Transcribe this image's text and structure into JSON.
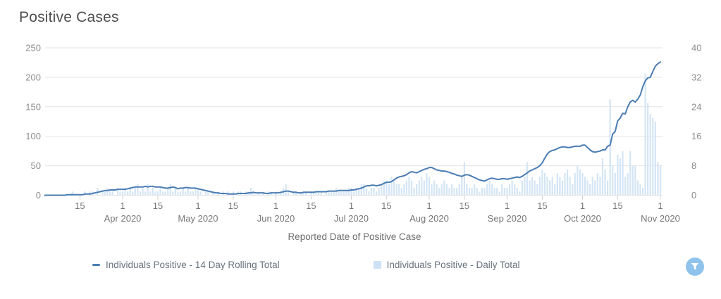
{
  "title": "Positive Cases",
  "chart_data": {
    "type": "composite",
    "title": "Positive Cases",
    "xlabel": "Reported Date of Positive Case",
    "grid": true,
    "legend_position": "bottom",
    "x_axis": {
      "start_date": "2020-03-01",
      "end_date": "2020-11-01",
      "ticks": [
        {
          "day": 14,
          "label": "15"
        },
        {
          "day": 31,
          "label": "1",
          "month": "Apr 2020"
        },
        {
          "day": 45,
          "label": "15"
        },
        {
          "day": 61,
          "label": "1",
          "month": "May 2020"
        },
        {
          "day": 75,
          "label": "15"
        },
        {
          "day": 92,
          "label": "1",
          "month": "Jun 2020"
        },
        {
          "day": 106,
          "label": "15"
        },
        {
          "day": 122,
          "label": "1",
          "month": "Jul 2020"
        },
        {
          "day": 136,
          "label": "15"
        },
        {
          "day": 153,
          "label": "1",
          "month": "Aug 2020"
        },
        {
          "day": 167,
          "label": "15"
        },
        {
          "day": 184,
          "label": "1",
          "month": "Sep 2020"
        },
        {
          "day": 198,
          "label": "15"
        },
        {
          "day": 214,
          "label": "1",
          "month": "Oct 2020"
        },
        {
          "day": 228,
          "label": "15"
        },
        {
          "day": 245,
          "label": "1",
          "month": "Nov 2020"
        }
      ]
    },
    "y_left": {
      "max": 250,
      "ticks": [
        0,
        50,
        100,
        150,
        200,
        250
      ]
    },
    "y_right": {
      "max": 40,
      "ticks": [
        0,
        8,
        16,
        24,
        32,
        40
      ]
    },
    "series": [
      {
        "name": "Individuals Positive - 14 Day Rolling Total",
        "type": "line",
        "axis": "left",
        "color": "#4a7cb3",
        "values": [
          0,
          0,
          0,
          0,
          0,
          0,
          0,
          0,
          0,
          1,
          1,
          1,
          1,
          1,
          1,
          1,
          2,
          2,
          2,
          3,
          4,
          5,
          6,
          7,
          8,
          8,
          9,
          9,
          9,
          10,
          10,
          10,
          10,
          11,
          12,
          13,
          14,
          14,
          14,
          14,
          15,
          14,
          15,
          15,
          14,
          14,
          14,
          13,
          12,
          12,
          13,
          14,
          13,
          11,
          12,
          12,
          13,
          13,
          12,
          12,
          12,
          11,
          10,
          9,
          8,
          7,
          6,
          5,
          4,
          4,
          3,
          3,
          3,
          2,
          2,
          2,
          2,
          3,
          3,
          3,
          3,
          4,
          4,
          5,
          4,
          4,
          4,
          4,
          3,
          3,
          4,
          4,
          4,
          4,
          5,
          6,
          7,
          7,
          6,
          5,
          5,
          4,
          4,
          5,
          5,
          5,
          5,
          5,
          6,
          6,
          6,
          6,
          6,
          7,
          7,
          7,
          7,
          8,
          8,
          8,
          8,
          8,
          9,
          9,
          10,
          11,
          12,
          14,
          16,
          16,
          17,
          17,
          16,
          17,
          18,
          20,
          22,
          22,
          23,
          26,
          29,
          31,
          32,
          33,
          35,
          38,
          40,
          39,
          38,
          40,
          42,
          44,
          45,
          47,
          47,
          45,
          43,
          42,
          41,
          41,
          40,
          39,
          37,
          36,
          34,
          33,
          32,
          34,
          35,
          34,
          32,
          30,
          28,
          26,
          25,
          24,
          26,
          28,
          29,
          28,
          27,
          27,
          28,
          28,
          27,
          28,
          29,
          30,
          31,
          30,
          32,
          35,
          38,
          41,
          43,
          45,
          47,
          50,
          55,
          63,
          70,
          74,
          76,
          77,
          79,
          81,
          82,
          82,
          81,
          81,
          82,
          83,
          83,
          83,
          85,
          85,
          81,
          77,
          74,
          73,
          74,
          75,
          77,
          77,
          83,
          85,
          104,
          108,
          126,
          131,
          139,
          138,
          150,
          158,
          161,
          158,
          163,
          170,
          184,
          194,
          199,
          200,
          210,
          219,
          223,
          226
        ]
      },
      {
        "name": "Individuals Positive - Daily Total",
        "type": "bar",
        "axis": "right",
        "color": "#d4e5f5",
        "values": [
          0,
          0,
          0,
          0,
          0,
          0,
          0,
          0,
          0,
          0,
          0,
          1,
          0,
          0,
          0,
          0,
          1,
          0,
          1,
          1,
          0,
          2,
          0,
          1,
          1,
          2,
          1,
          1,
          0,
          2,
          1,
          1,
          2,
          1,
          2,
          1,
          2,
          3,
          1,
          2,
          1,
          3,
          1,
          2,
          1,
          1,
          2,
          1,
          1,
          2,
          3,
          1,
          2,
          1,
          1,
          2,
          1,
          2,
          1,
          1,
          2,
          2,
          1,
          0,
          1,
          1,
          0,
          1,
          0,
          1,
          0,
          1,
          0,
          1,
          0,
          1,
          0,
          1,
          1,
          0,
          1,
          1,
          2,
          1,
          0,
          1,
          0,
          1,
          0,
          1,
          1,
          0,
          1,
          0,
          1,
          2,
          3,
          1,
          0,
          1,
          1,
          0,
          1,
          1,
          1,
          0,
          1,
          1,
          1,
          1,
          1,
          0,
          1,
          1,
          1,
          1,
          2,
          1,
          1,
          1,
          1,
          2,
          2,
          1,
          2,
          2,
          3,
          3,
          2,
          1,
          2,
          2,
          1,
          2,
          3,
          4,
          4,
          3,
          5,
          4,
          3,
          3,
          2,
          3,
          4,
          5,
          4,
          2,
          3,
          4,
          5,
          4,
          6,
          5,
          3,
          4,
          3,
          2,
          3,
          4,
          3,
          2,
          3,
          2,
          2,
          3,
          5,
          9,
          3,
          2,
          2,
          3,
          2,
          1,
          2,
          2,
          3,
          4,
          3,
          2,
          2,
          1,
          3,
          2,
          2,
          3,
          4,
          3,
          2,
          1,
          4,
          5,
          9,
          4,
          5,
          4,
          3,
          5,
          7,
          6,
          5,
          4,
          5,
          3,
          6,
          5,
          4,
          6,
          7,
          5,
          3,
          6,
          8,
          7,
          6,
          5,
          4,
          3,
          5,
          4,
          6,
          5,
          10,
          7,
          4,
          26,
          8,
          6,
          11,
          10,
          12,
          5,
          6,
          12,
          8,
          8,
          4,
          3,
          2,
          33,
          25,
          22,
          21,
          20,
          9,
          8
        ]
      }
    ]
  },
  "legend": {
    "items": [
      {
        "label": "Individuals Positive - 14 Day Rolling Total",
        "marker": "line",
        "color": "#4a7cb3"
      },
      {
        "label": "Individuals Positive - Daily Total",
        "marker": "square",
        "color": "#cde1f4"
      }
    ]
  },
  "ui": {
    "filter_button": {
      "icon": "filter-icon",
      "color": "#8fc3ec",
      "glyph_color": "#ffffff"
    }
  },
  "style_colors": {
    "gridline": "#e2e2e2",
    "axis_label": "#8c8c8c",
    "tick_label": "#767676",
    "title": "#4f4f4f"
  }
}
